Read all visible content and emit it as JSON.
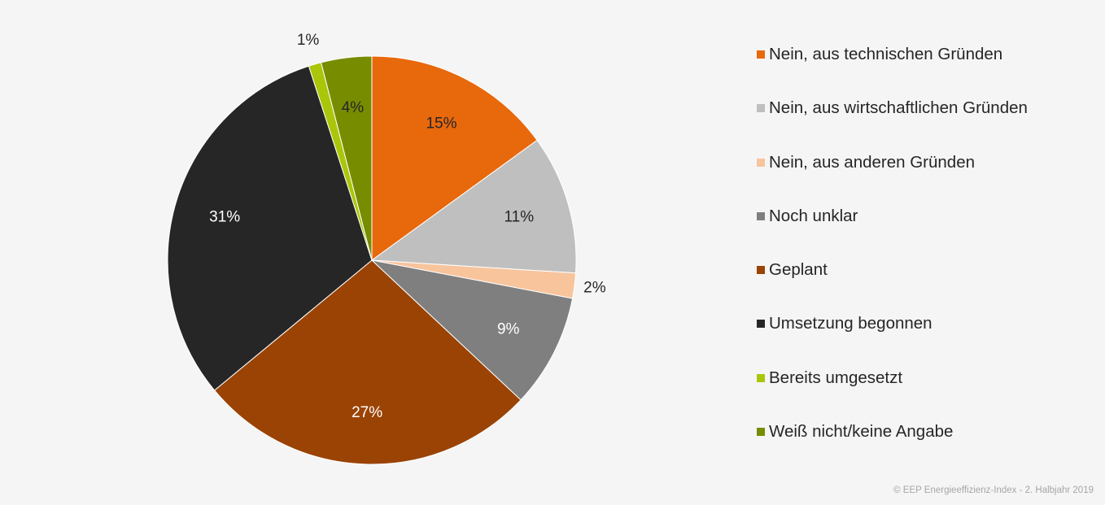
{
  "chart_data": {
    "type": "pie",
    "start_angle_deg": 0,
    "direction": "clockwise",
    "slices": [
      {
        "label": "Nein, aus technischen Gründen",
        "value": 15,
        "value_label": "15%",
        "color": "#e8680c",
        "label_color": "#262626"
      },
      {
        "label": "Nein, aus wirtschaftlichen Gründen",
        "value": 11,
        "value_label": "11%",
        "color": "#bfbfbf",
        "label_color": "#262626"
      },
      {
        "label": "Nein, aus anderen Gründen",
        "value": 2,
        "value_label": "2%",
        "color": "#f8c49c",
        "label_color": "#262626"
      },
      {
        "label": "Noch unklar",
        "value": 9,
        "value_label": "9%",
        "color": "#7f7f7f",
        "label_color": "#ffffff"
      },
      {
        "label": "Geplant",
        "value": 27,
        "value_label": "27%",
        "color": "#9a4304",
        "label_color": "#ffffff"
      },
      {
        "label": "Umsetzung begonnen",
        "value": 31,
        "value_label": "31%",
        "color": "#262626",
        "label_color": "#ffffff"
      },
      {
        "label": "Bereits umgesetzt",
        "value": 1,
        "value_label": "1%",
        "color": "#abc60a",
        "label_color": "#262626"
      },
      {
        "label": "Weiß nicht/keine Angabe",
        "value": 4,
        "value_label": "4%",
        "color": "#788c00",
        "label_color": "#262626"
      }
    ],
    "legend_position": "right"
  },
  "copyright": "© EEP Energieeffizienz-Index - 2. Halbjahr 2019"
}
